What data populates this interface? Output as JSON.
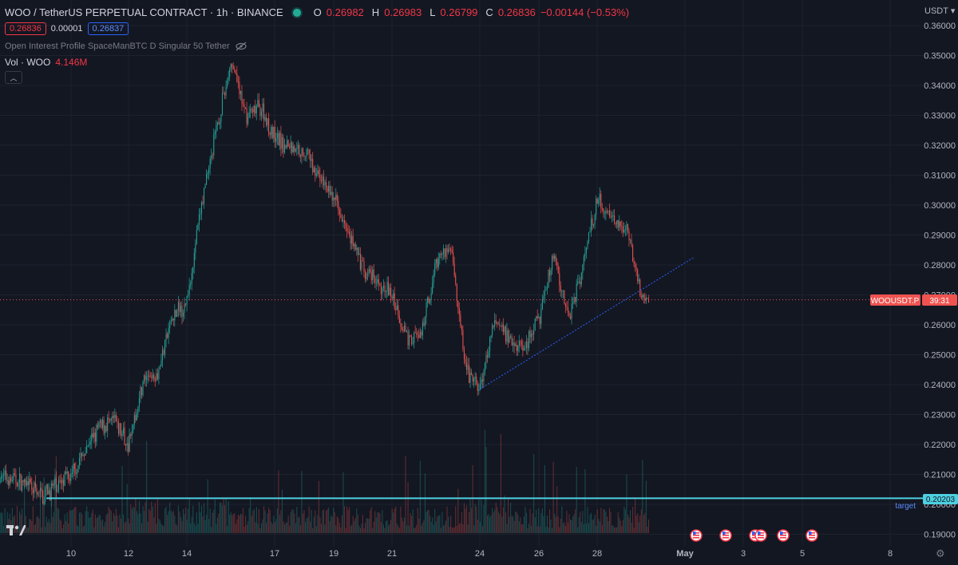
{
  "header": {
    "symbol": "WOO / TetherUS PERPETUAL CONTRACT · 1h · BINANCE",
    "ohlc": [
      {
        "label": "O",
        "value": "0.26982"
      },
      {
        "label": "H",
        "value": "0.26983"
      },
      {
        "label": "L",
        "value": "0.26799"
      },
      {
        "label": "C",
        "value": "0.26836"
      }
    ],
    "change": "−0.00144 (−0.53%)",
    "status_color": "#22ab94"
  },
  "trade": {
    "sell_price": "0.26836",
    "spread": "0.00001",
    "buy_price": "0.26837"
  },
  "indicators": {
    "oi_profile": "Open Interest Profile SpaceManBTC D Singular 50 Tether",
    "vol_label": "Vol · WOO",
    "vol_value": "4.146M"
  },
  "axis": {
    "currency": "USDT",
    "price_ticks": [
      "0.36000",
      "0.35000",
      "0.34000",
      "0.33000",
      "0.32000",
      "0.31000",
      "0.30000",
      "0.29000",
      "0.28000",
      "0.27000",
      "0.26000",
      "0.25000",
      "0.24000",
      "0.23000",
      "0.22000",
      "0.21000",
      "0.20000",
      "0.19000"
    ],
    "time_ticks": [
      "10",
      "12",
      "14",
      "17",
      "19",
      "21",
      "24",
      "26",
      "28",
      "May",
      "3",
      "5",
      "8"
    ]
  },
  "labels": {
    "symbol_tag": "WOOUSDT.P",
    "countdown": "39:31",
    "target_price": "0.20203",
    "target_text": "target"
  },
  "colors": {
    "background": "#131722",
    "up": "#26a69a",
    "down": "#ef5350",
    "target_line": "#4dd0e1",
    "trendline": "#2962ff"
  },
  "icons": [
    "eye-crossed-icon",
    "chevron-up-icon",
    "tradingview-logo-icon",
    "us-flag-icon",
    "gear-icon"
  ],
  "chart_data": {
    "type": "candlestick",
    "interval": "1h",
    "y_range": [
      0.185,
      0.362
    ],
    "current_price": 0.26836,
    "target_price": 0.20203,
    "price_path": [
      {
        "t": "8",
        "price": 0.2115
      },
      {
        "t": "9",
        "price": 0.2085
      },
      {
        "t": "9.5",
        "price": 0.203
      },
      {
        "t": "10",
        "price": 0.21
      },
      {
        "t": "11",
        "price": 0.226
      },
      {
        "t": "11.5",
        "price": 0.228
      },
      {
        "t": "12",
        "price": 0.22
      },
      {
        "t": "12.5",
        "price": 0.241
      },
      {
        "t": "13",
        "price": 0.244
      },
      {
        "t": "13.5",
        "price": 0.262
      },
      {
        "t": "14",
        "price": 0.268
      },
      {
        "t": "14.5",
        "price": 0.3
      },
      {
        "t": "15",
        "price": 0.325
      },
      {
        "t": "15.5",
        "price": 0.348
      },
      {
        "t": "16",
        "price": 0.33
      },
      {
        "t": "16.5",
        "price": 0.333
      },
      {
        "t": "17",
        "price": 0.322
      },
      {
        "t": "18",
        "price": 0.318
      },
      {
        "t": "19",
        "price": 0.302
      },
      {
        "t": "19.5",
        "price": 0.292
      },
      {
        "t": "20",
        "price": 0.278
      },
      {
        "t": "21",
        "price": 0.27
      },
      {
        "t": "21.5",
        "price": 0.256
      },
      {
        "t": "22",
        "price": 0.256
      },
      {
        "t": "22.5",
        "price": 0.282
      },
      {
        "t": "23",
        "price": 0.286
      },
      {
        "t": "23.5",
        "price": 0.245
      },
      {
        "t": "24",
        "price": 0.238
      },
      {
        "t": "24.5",
        "price": 0.262
      },
      {
        "t": "25",
        "price": 0.256
      },
      {
        "t": "25.5",
        "price": 0.252
      },
      {
        "t": "26",
        "price": 0.262
      },
      {
        "t": "26.5",
        "price": 0.284
      },
      {
        "t": "27",
        "price": 0.262
      },
      {
        "t": "27.5",
        "price": 0.28
      },
      {
        "t": "28",
        "price": 0.302
      },
      {
        "t": "28.5",
        "price": 0.296
      },
      {
        "t": "29",
        "price": 0.292
      },
      {
        "t": "29.5",
        "price": 0.27
      },
      {
        "t": "29.8",
        "price": 0.2684
      }
    ],
    "trendline": {
      "start": {
        "t": "24",
        "price": 0.2385
      },
      "end": {
        "t": "May 1",
        "price": 0.2825
      }
    },
    "horizontal_lines": [
      {
        "price": 0.20203,
        "label": "target"
      }
    ]
  }
}
